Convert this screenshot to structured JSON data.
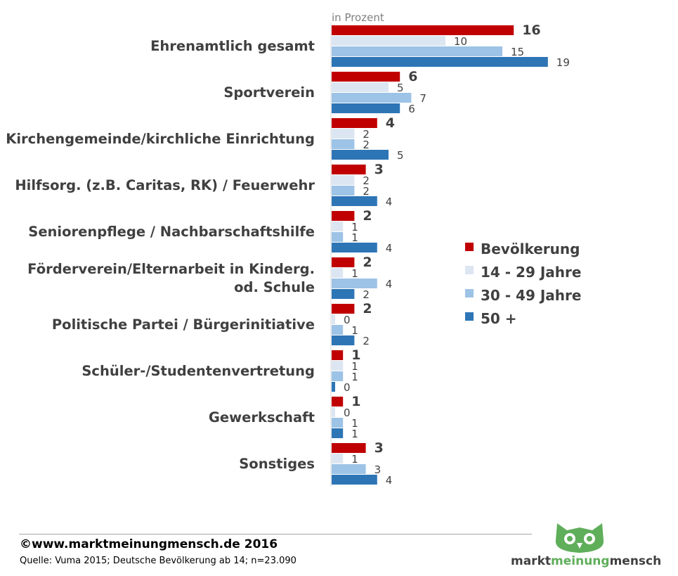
{
  "chart_data": {
    "type": "bar",
    "orientation": "horizontal",
    "unit_label": "in Prozent",
    "categories": [
      [
        "Ehrenamtlich gesamt"
      ],
      [
        "Sportverein"
      ],
      [
        "Kirchengemeinde/kirchliche Einrichtung"
      ],
      [
        "Hilfsorg. (z.B. Caritas, RK) / Feuerwehr"
      ],
      [
        "Seniorenpflege / Nachbarschaftshilfe"
      ],
      [
        "Förderverein/Elternarbeit in Kinderg.",
        "od. Schule"
      ],
      [
        "Politische Partei / Bürgerinitiative"
      ],
      [
        "Schüler-/Studentenvertretung"
      ],
      [
        "Gewerkschaft"
      ],
      [
        "Sonstiges"
      ]
    ],
    "series": [
      {
        "name": "Bevölkerung",
        "color": "#c00000",
        "values": [
          16,
          6,
          4,
          3,
          2,
          2,
          2,
          1,
          1,
          3
        ]
      },
      {
        "name": "14 - 29 Jahre",
        "color": "#dce6f2",
        "values": [
          10,
          5,
          2,
          2,
          1,
          1,
          0,
          1,
          0,
          1
        ]
      },
      {
        "name": "30 - 49 Jahre",
        "color": "#9dc3e6",
        "values": [
          15,
          7,
          2,
          2,
          1,
          4,
          1,
          1,
          1,
          3
        ]
      },
      {
        "name": "50 +",
        "color": "#2e75b6",
        "values": [
          19,
          6,
          5,
          4,
          4,
          2,
          2,
          0,
          1,
          4
        ]
      }
    ],
    "legend_position": "right",
    "grid": false
  },
  "footer": {
    "copyright": "©www.marktmeinungmensch.de 2016",
    "source": "Quelle: Vuma 2015; Deutsche Bevölkerung ab 14; n=23.090"
  },
  "logo": {
    "part1": "markt",
    "part2": "meinung",
    "part3": "mensch",
    "color": "#5fae5a"
  }
}
